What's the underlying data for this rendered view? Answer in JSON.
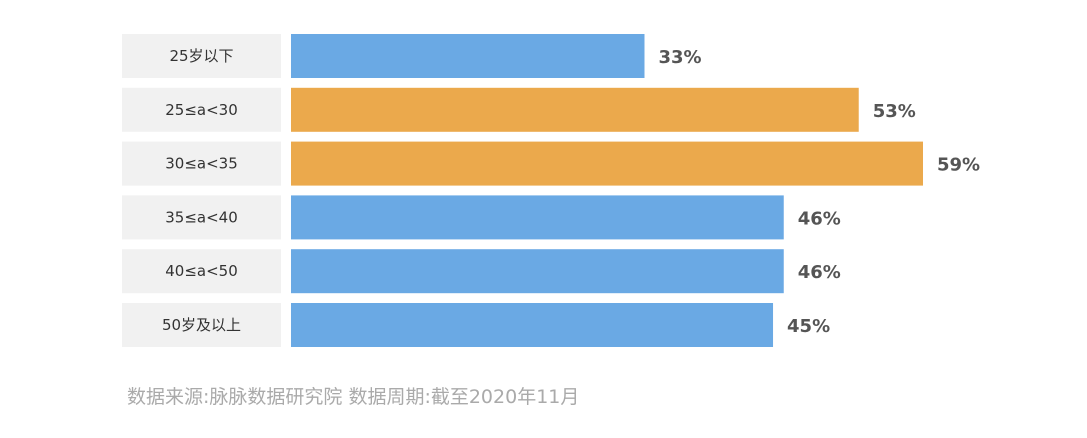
{
  "chart_data": {
    "type": "bar",
    "orientation": "horizontal",
    "categories": [
      "25岁以下",
      "25≤a<30",
      "30≤a<35",
      "35≤a<40",
      "40≤a<50",
      "50岁及以上"
    ],
    "values": [
      33,
      53,
      59,
      46,
      46,
      45
    ],
    "value_labels": [
      "33%",
      "53%",
      "59%",
      "46%",
      "46%",
      "45%"
    ],
    "highlighted": [
      false,
      true,
      true,
      false,
      false,
      false
    ],
    "colors": {
      "normal": "#6aa9e4",
      "highlight": "#eba94c",
      "label_bg": "#f1f1f1"
    },
    "xlim": [
      0,
      59
    ],
    "grid": false,
    "legend": "none"
  },
  "source": "数据来源:脉脉数据研究院 数据周期:截至2020年11月"
}
